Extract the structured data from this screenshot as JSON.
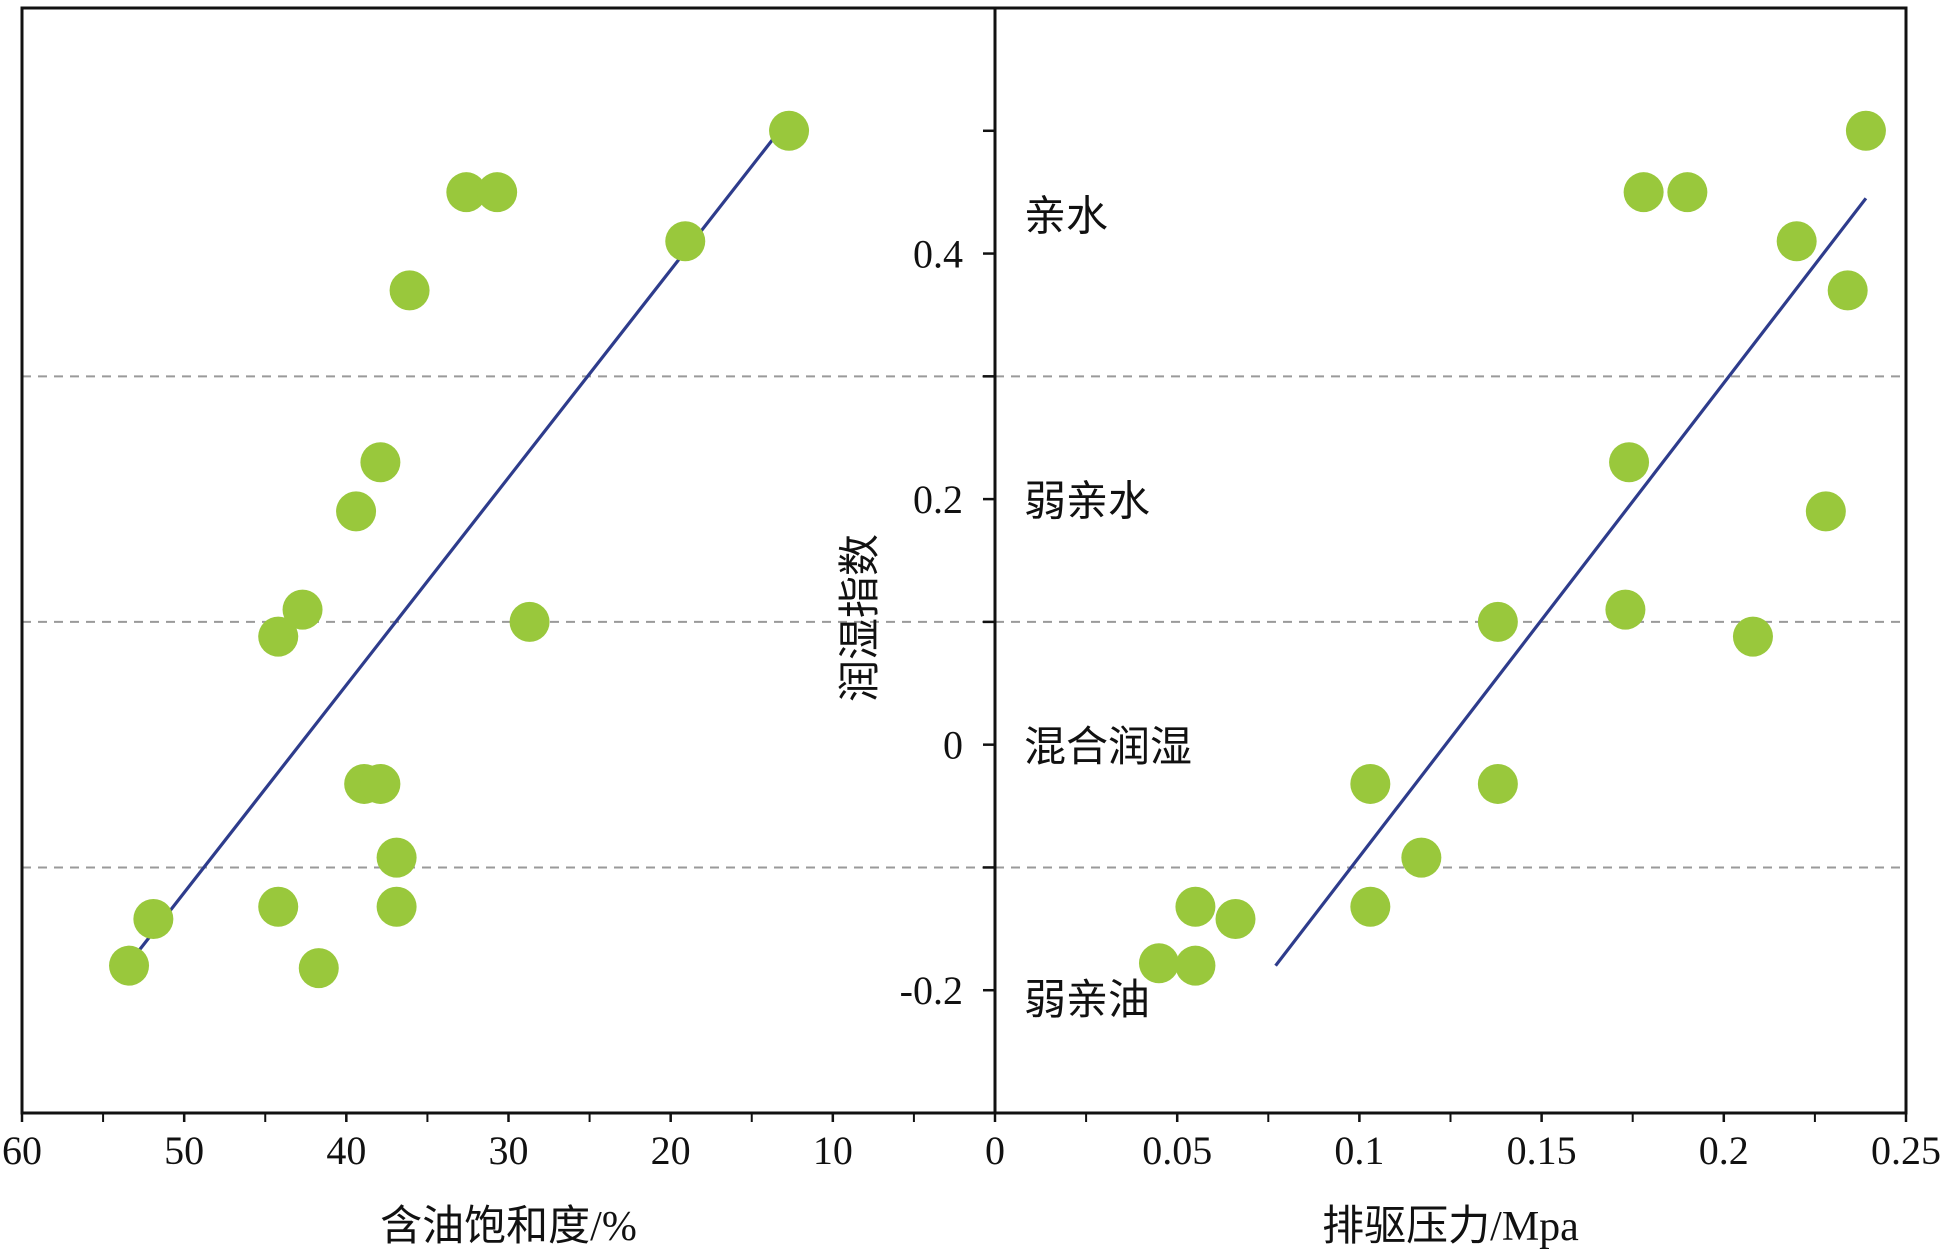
{
  "colors": {
    "point": "#99c83c",
    "trend": "#2e3c8c",
    "axis": "#111111",
    "gridline": "#9a9a9a"
  },
  "chart_data": [
    {
      "type": "scatter",
      "name": "left-panel",
      "xlabel": "含油饱和度/%",
      "ylabel": "",
      "x_reversed": true,
      "xlim": [
        60,
        0
      ],
      "ylim": [
        -0.3,
        0.6
      ],
      "x_ticks": [
        60,
        50,
        40,
        30,
        20,
        10
      ],
      "x_tick_labels": [
        "60",
        "50",
        "40",
        "30",
        "20",
        "10"
      ],
      "y_ticks": [],
      "dashed_y": [
        0.3,
        0.1,
        -0.1
      ],
      "points": [
        {
          "x": 53.4,
          "y": -0.18
        },
        {
          "x": 51.9,
          "y": -0.142
        },
        {
          "x": 44.2,
          "y": -0.132
        },
        {
          "x": 41.7,
          "y": -0.182
        },
        {
          "x": 36.9,
          "y": -0.132
        },
        {
          "x": 36.9,
          "y": -0.092
        },
        {
          "x": 38.9,
          "y": -0.032
        },
        {
          "x": 37.9,
          "y": -0.032
        },
        {
          "x": 44.2,
          "y": 0.088
        },
        {
          "x": 42.7,
          "y": 0.11
        },
        {
          "x": 39.4,
          "y": 0.19
        },
        {
          "x": 37.9,
          "y": 0.23
        },
        {
          "x": 36.1,
          "y": 0.37
        },
        {
          "x": 32.6,
          "y": 0.45
        },
        {
          "x": 30.7,
          "y": 0.45
        },
        {
          "x": 28.7,
          "y": 0.1
        },
        {
          "x": 19.1,
          "y": 0.41
        },
        {
          "x": 12.7,
          "y": 0.5
        }
      ],
      "trendline": [
        [
          53.4,
          -0.178
        ],
        [
          12.7,
          0.51
        ]
      ]
    },
    {
      "type": "scatter",
      "name": "right-panel",
      "xlabel": "排驱压力/Mpa",
      "ylabel": "润湿指数",
      "xlim": [
        0,
        0.25
      ],
      "ylim": [
        -0.3,
        0.6
      ],
      "x_ticks": [
        0,
        0.05,
        0.1,
        0.15,
        0.2,
        0.25
      ],
      "x_tick_labels": [
        "0",
        "0.05",
        "0.1",
        "0.15",
        "0.2",
        "0.25"
      ],
      "y_ticks": [
        -0.2,
        0,
        0.2,
        0.4
      ],
      "y_tick_labels": [
        "-0.2",
        "0",
        "0.2",
        "0.4"
      ],
      "dashed_y": [
        0.3,
        0.1,
        -0.1
      ],
      "zone_labels": [
        {
          "text": "亲水",
          "y": 0.43
        },
        {
          "text": "弱亲水",
          "y": 0.198
        },
        {
          "text": "混合润湿",
          "y": -0.002
        },
        {
          "text": "弱亲油",
          "y": -0.208
        }
      ],
      "points": [
        {
          "x": 0.045,
          "y": -0.178
        },
        {
          "x": 0.055,
          "y": -0.18
        },
        {
          "x": 0.055,
          "y": -0.132
        },
        {
          "x": 0.066,
          "y": -0.142
        },
        {
          "x": 0.103,
          "y": -0.032
        },
        {
          "x": 0.103,
          "y": -0.132
        },
        {
          "x": 0.117,
          "y": -0.092
        },
        {
          "x": 0.138,
          "y": -0.032
        },
        {
          "x": 0.138,
          "y": 0.1
        },
        {
          "x": 0.173,
          "y": 0.11
        },
        {
          "x": 0.174,
          "y": 0.23
        },
        {
          "x": 0.178,
          "y": 0.45
        },
        {
          "x": 0.19,
          "y": 0.45
        },
        {
          "x": 0.208,
          "y": 0.088
        },
        {
          "x": 0.22,
          "y": 0.41
        },
        {
          "x": 0.228,
          "y": 0.19
        },
        {
          "x": 0.234,
          "y": 0.37
        },
        {
          "x": 0.239,
          "y": 0.5
        }
      ],
      "trendline": [
        [
          0.077,
          -0.18
        ],
        [
          0.239,
          0.445
        ]
      ]
    }
  ]
}
